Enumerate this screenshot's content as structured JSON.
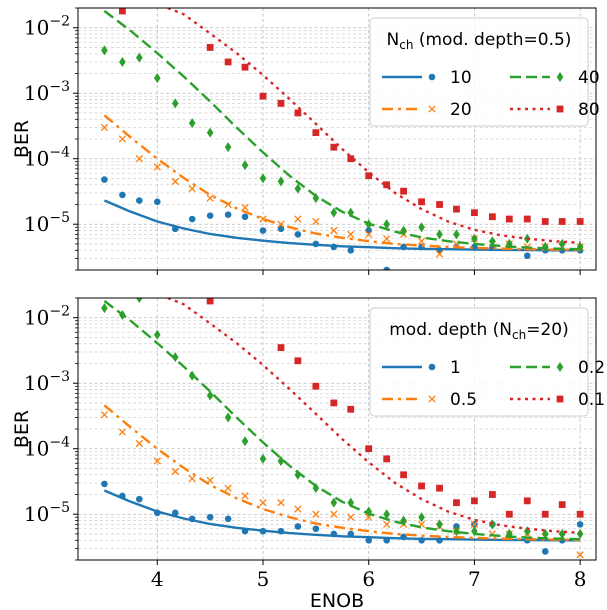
{
  "chart_data": [
    {
      "type": "line",
      "legend_title_main": "N",
      "legend_title_sub": "ch",
      "legend_title_rest": " (mod. depth=0.5)",
      "xlabel": "",
      "ylabel": "BER",
      "yscale": "log",
      "xlim": [
        3.25,
        8.15
      ],
      "ylim": [
        2e-06,
        0.02
      ],
      "grid": true,
      "legend_position": "top-right",
      "x_ticks": [
        "4",
        "5",
        "6",
        "7",
        "8"
      ],
      "y_ticks": [
        {
          "base": "10",
          "exp": "−5"
        },
        {
          "base": "10",
          "exp": "−4"
        },
        {
          "base": "10",
          "exp": "−3"
        },
        {
          "base": "10",
          "exp": "−2"
        }
      ],
      "series": [
        {
          "name": "10",
          "color": "#1f77b4",
          "dash": "solid",
          "marker": "circle",
          "fit_x": [
            3.5,
            3.75,
            4,
            4.25,
            4.5,
            4.75,
            5,
            5.25,
            5.5,
            5.75,
            6,
            6.25,
            6.5,
            6.75,
            7,
            7.25,
            7.5,
            7.75,
            8
          ],
          "fit_y": [
            2.3e-05,
            1.55e-05,
            1.1e-05,
            8.6e-06,
            7.1e-06,
            6.2e-06,
            5.6e-06,
            5.15e-06,
            4.85e-06,
            4.6e-06,
            4.45e-06,
            4.3e-06,
            4.2e-06,
            4.15e-06,
            4.1e-06,
            4.05e-06,
            4.02e-06,
            4e-06,
            4e-06
          ],
          "x": [
            3.5,
            3.67,
            3.83,
            4.0,
            4.17,
            4.33,
            4.5,
            4.67,
            4.83,
            5.0,
            5.17,
            5.33,
            5.5,
            5.67,
            5.83,
            6.0,
            6.17,
            6.33,
            6.5,
            6.67,
            6.83,
            7.0,
            7.17,
            7.33,
            7.5,
            7.67,
            7.83,
            8.0
          ],
          "y": [
            4.8e-05,
            2.8e-05,
            2.3e-05,
            2.2e-05,
            8.5e-06,
            1.2e-05,
            1.35e-05,
            1.4e-05,
            1.3e-05,
            8e-06,
            8.5e-06,
            7e-06,
            5e-06,
            4.5e-06,
            4e-06,
            8e-06,
            2e-06,
            4.5e-06,
            4.5e-06,
            4e-06,
            4.5e-06,
            4.5e-06,
            4.5e-06,
            4.5e-06,
            3.3e-06,
            4e-06,
            4e-06,
            4e-06
          ]
        },
        {
          "name": "20",
          "color": "#ff7f0e",
          "dash": "dashdot",
          "marker": "x",
          "fit_x": [
            3.5,
            3.75,
            4,
            4.25,
            4.5,
            4.75,
            5,
            5.25,
            5.5,
            5.75,
            6,
            6.25,
            6.5,
            6.75,
            7,
            7.25,
            7.5,
            7.75,
            8
          ],
          "fit_y": [
            0.00046,
            0.00021,
            0.0001,
            5.1e-05,
            2.8e-05,
            1.75e-05,
            1.2e-05,
            9e-06,
            7.2e-06,
            6.2e-06,
            5.5e-06,
            5e-06,
            4.7e-06,
            4.5e-06,
            4.35e-06,
            4.25e-06,
            4.15e-06,
            4.1e-06,
            4.05e-06
          ],
          "x": [
            3.5,
            3.67,
            3.83,
            4.0,
            4.17,
            4.33,
            4.5,
            4.67,
            4.83,
            5.0,
            5.17,
            5.33,
            5.5,
            5.67,
            5.83,
            6.0,
            6.17,
            6.33,
            6.5,
            6.67,
            6.83,
            7.0,
            7.17,
            7.33,
            7.5,
            7.67,
            7.83,
            8.0
          ],
          "y": [
            0.0003,
            0.0002,
            0.0001,
            7.5e-05,
            4.5e-05,
            3.5e-05,
            2.5e-05,
            2e-05,
            1.8e-05,
            1.2e-05,
            1e-05,
            1.2e-05,
            1.1e-05,
            8e-06,
            7e-06,
            7e-06,
            6e-06,
            7e-06,
            5.5e-06,
            3.5e-06,
            5e-06,
            6e-06,
            5e-06,
            5e-06,
            4.5e-06,
            4.5e-06,
            4.5e-06,
            4.5e-06
          ]
        },
        {
          "name": "40",
          "color": "#2ca02c",
          "dash": "dashed",
          "marker": "diamond",
          "fit_x": [
            3.5,
            3.75,
            4,
            4.25,
            4.5,
            4.75,
            5,
            5.25,
            5.5,
            5.75,
            6,
            6.25,
            6.5,
            6.75,
            7,
            7.25,
            7.5,
            7.75,
            8
          ],
          "fit_y": [
            0.018,
            0.0089,
            0.0041,
            0.0018,
            0.00075,
            0.0003,
            0.000125,
            5.5e-05,
            2.7e-05,
            1.55e-05,
            1.02e-05,
            7.7e-06,
            6.3e-06,
            5.5e-06,
            5e-06,
            4.65e-06,
            4.4e-06,
            4.25e-06,
            4.15e-06
          ],
          "x": [
            3.5,
            3.67,
            3.83,
            4.0,
            4.17,
            4.33,
            4.5,
            4.67,
            4.83,
            5.0,
            5.17,
            5.33,
            5.5,
            5.67,
            5.83,
            6.0,
            6.17,
            6.33,
            6.5,
            6.67,
            6.83,
            7.0,
            7.17,
            7.33,
            7.5,
            7.67,
            7.83,
            8.0
          ],
          "y": [
            0.0045,
            0.003,
            0.0035,
            0.0017,
            0.0007,
            0.00035,
            0.00025,
            0.00015,
            8e-05,
            5e-05,
            4.5e-05,
            3.5e-05,
            2.5e-05,
            1.5e-05,
            1.5e-05,
            1e-05,
            1e-05,
            8e-06,
            9e-06,
            7e-06,
            7e-06,
            6e-06,
            5.5e-06,
            5e-06,
            6e-06,
            4.5e-06,
            5e-06,
            4.5e-06
          ]
        },
        {
          "name": "80",
          "color": "#d62728",
          "dash": "dotted",
          "marker": "square",
          "fit_x": [
            4.1,
            4.25,
            4.5,
            4.75,
            5,
            5.25,
            5.5,
            5.75,
            6,
            6.25,
            6.5,
            6.75,
            7,
            7.25,
            7.5,
            7.75,
            8
          ],
          "fit_y": [
            0.02,
            0.016,
            0.0082,
            0.0041,
            0.0019,
            0.00082,
            0.00034,
            0.00014,
            6.2e-05,
            3e-05,
            1.7e-05,
            1.1e-05,
            8.2e-06,
            6.8e-06,
            6e-06,
            5.5e-06,
            5.2e-06
          ],
          "x": [
            3.5,
            3.67,
            4.5,
            4.67,
            4.83,
            5.0,
            5.17,
            5.33,
            5.5,
            5.67,
            5.83,
            6.0,
            6.17,
            6.33,
            6.5,
            6.67,
            6.83,
            7.0,
            7.17,
            7.33,
            7.5,
            7.67,
            7.83,
            8.0
          ],
          "y": [
            0.03,
            0.018,
            0.005,
            0.003,
            0.0025,
            0.0009,
            0.0007,
            0.0005,
            0.00025,
            0.00015,
            0.0001,
            5.5e-05,
            4e-05,
            3.2e-05,
            2.2e-05,
            2e-05,
            1.7e-05,
            1.5e-05,
            1.3e-05,
            1.2e-05,
            1.2e-05,
            1.1e-05,
            1.1e-05,
            1.1e-05
          ]
        }
      ]
    },
    {
      "type": "line",
      "legend_title_main": "mod. depth (N",
      "legend_title_sub": "ch",
      "legend_title_rest": "=20)",
      "xlabel": "ENOB",
      "ylabel": "BER",
      "yscale": "log",
      "xlim": [
        3.25,
        8.15
      ],
      "ylim": [
        2e-06,
        0.02
      ],
      "grid": true,
      "legend_position": "top-right",
      "x_ticks": [
        "4",
        "5",
        "6",
        "7",
        "8"
      ],
      "y_ticks": [
        {
          "base": "10",
          "exp": "−5"
        },
        {
          "base": "10",
          "exp": "−4"
        },
        {
          "base": "10",
          "exp": "−3"
        },
        {
          "base": "10",
          "exp": "−2"
        }
      ],
      "series": [
        {
          "name": "1",
          "color": "#1f77b4",
          "dash": "solid",
          "marker": "circle",
          "fit_x": [
            3.5,
            3.75,
            4,
            4.25,
            4.5,
            4.75,
            5,
            5.25,
            5.5,
            5.75,
            6,
            6.25,
            6.5,
            6.75,
            7,
            7.25,
            7.5,
            7.75,
            8
          ],
          "fit_y": [
            2.3e-05,
            1.55e-05,
            1.1e-05,
            8.6e-06,
            7.1e-06,
            6.2e-06,
            5.6e-06,
            5.15e-06,
            4.85e-06,
            4.6e-06,
            4.45e-06,
            4.3e-06,
            4.2e-06,
            4.15e-06,
            4.1e-06,
            4.05e-06,
            4.02e-06,
            4e-06,
            4e-06
          ],
          "x": [
            3.5,
            3.67,
            3.83,
            4.0,
            4.17,
            4.33,
            4.5,
            4.67,
            4.83,
            5.0,
            5.17,
            5.33,
            5.5,
            5.67,
            5.83,
            6.0,
            6.17,
            6.33,
            6.5,
            6.67,
            6.83,
            7.0,
            7.17,
            7.33,
            7.5,
            7.67,
            7.83,
            8.0
          ],
          "y": [
            2.9e-05,
            1.9e-05,
            1.7e-05,
            1.05e-05,
            1.05e-05,
            8.5e-06,
            9e-06,
            8.5e-06,
            5.5e-06,
            5.5e-06,
            5.5e-06,
            6.5e-06,
            6e-06,
            5e-06,
            5e-06,
            4e-06,
            4e-06,
            4.5e-06,
            4e-06,
            4e-06,
            6.5e-06,
            7e-06,
            7e-06,
            4.5e-06,
            4e-06,
            2.7e-06,
            4e-06,
            7e-06
          ]
        },
        {
          "name": "0.5",
          "color": "#ff7f0e",
          "dash": "dashdot",
          "marker": "x",
          "fit_x": [
            3.5,
            3.75,
            4,
            4.25,
            4.5,
            4.75,
            5,
            5.25,
            5.5,
            5.75,
            6,
            6.25,
            6.5,
            6.75,
            7,
            7.25,
            7.5,
            7.75,
            8
          ],
          "fit_y": [
            0.00046,
            0.00021,
            0.0001,
            5.1e-05,
            2.8e-05,
            1.75e-05,
            1.2e-05,
            9e-06,
            7.2e-06,
            6.2e-06,
            5.5e-06,
            5e-06,
            4.7e-06,
            4.5e-06,
            4.35e-06,
            4.25e-06,
            4.15e-06,
            4.1e-06,
            4.05e-06
          ],
          "x": [
            3.5,
            3.67,
            3.83,
            4.0,
            4.17,
            4.33,
            4.5,
            4.67,
            4.83,
            5.0,
            5.17,
            5.33,
            5.5,
            5.67,
            5.83,
            6.0,
            6.17,
            6.33,
            6.5,
            6.67,
            6.83,
            7.0,
            7.17,
            7.33,
            7.5,
            7.67,
            7.83,
            8.0
          ],
          "y": [
            0.00033,
            0.00018,
            0.00012,
            6.5e-05,
            4.5e-05,
            3.5e-05,
            3.3e-05,
            2.5e-05,
            1.9e-05,
            1.5e-05,
            1.5e-05,
            1.2e-05,
            1e-05,
            1e-05,
            9e-06,
            9e-06,
            7e-06,
            7e-06,
            7e-06,
            6.5e-06,
            5.5e-06,
            7e-06,
            5e-06,
            5e-06,
            5e-06,
            4.5e-06,
            4.5e-06,
            2.4e-06
          ]
        },
        {
          "name": "0.2",
          "color": "#2ca02c",
          "dash": "dashed",
          "marker": "diamond",
          "fit_x": [
            3.5,
            3.75,
            4,
            4.25,
            4.5,
            4.75,
            5,
            5.25,
            5.5,
            5.75,
            6,
            6.25,
            6.5,
            6.75,
            7,
            7.25,
            7.5,
            7.75,
            8
          ],
          "fit_y": [
            0.018,
            0.0089,
            0.0041,
            0.0018,
            0.00075,
            0.0003,
            0.000125,
            5.5e-05,
            2.7e-05,
            1.55e-05,
            1.02e-05,
            7.7e-06,
            6.3e-06,
            5.5e-06,
            5e-06,
            4.65e-06,
            4.4e-06,
            4.25e-06,
            4.15e-06
          ],
          "x": [
            3.5,
            3.67,
            3.83,
            4.0,
            4.17,
            4.33,
            4.5,
            4.67,
            4.83,
            5.0,
            5.17,
            5.33,
            5.5,
            5.67,
            5.83,
            6.0,
            6.17,
            6.33,
            6.5,
            6.67,
            6.83,
            7.0,
            7.17,
            7.33,
            7.5,
            7.67,
            7.83,
            8.0
          ],
          "y": [
            0.014,
            0.011,
            0.02,
            0.0055,
            0.0025,
            0.0013,
            0.00065,
            0.0003,
            0.00013,
            7e-05,
            6.5e-05,
            4e-05,
            2.5e-05,
            1.5e-05,
            1.5e-05,
            1.1e-05,
            1e-05,
            8e-06,
            9e-06,
            7e-06,
            5.5e-06,
            5.5e-06,
            7e-06,
            5e-06,
            5.5e-06,
            5e-06,
            5e-06,
            5e-06
          ]
        },
        {
          "name": "0.1",
          "color": "#d62728",
          "dash": "dotted",
          "marker": "square",
          "fit_x": [
            4.1,
            4.25,
            4.5,
            4.75,
            5,
            5.25,
            5.5,
            5.75,
            6,
            6.25,
            6.5,
            6.75,
            7,
            7.25,
            7.5,
            7.75,
            8
          ],
          "fit_y": [
            0.02,
            0.016,
            0.0082,
            0.0041,
            0.0019,
            0.00082,
            0.00034,
            0.00014,
            6.2e-05,
            3e-05,
            1.7e-05,
            1.1e-05,
            8.2e-06,
            6.8e-06,
            6e-06,
            5.5e-06,
            5.2e-06
          ],
          "x": [
            4.5,
            5.17,
            5.33,
            5.5,
            5.67,
            5.83,
            6.0,
            6.17,
            6.33,
            6.5,
            6.67,
            6.83,
            7.0,
            7.17,
            7.33,
            7.5,
            7.67,
            7.83,
            8.0
          ],
          "y": [
            0.018,
            0.0035,
            0.0022,
            0.0009,
            0.0005,
            0.0004,
            0.0001,
            7e-05,
            4e-05,
            2.7e-05,
            2.5e-05,
            1.5e-05,
            1.6e-05,
            2e-05,
            1e-05,
            1.6e-05,
            1e-05,
            1.4e-05,
            1e-05
          ]
        }
      ]
    }
  ]
}
